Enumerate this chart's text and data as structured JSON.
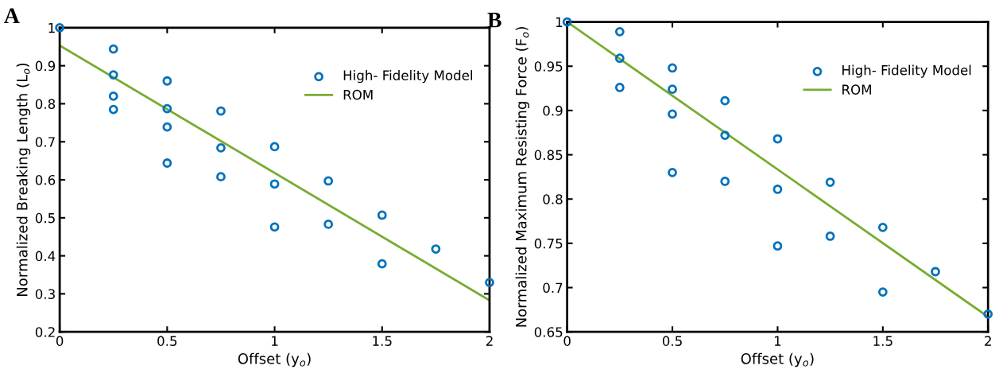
{
  "chart_data": [
    {
      "type": "scatter",
      "title": "A",
      "xlabel": "Offset (y$_{o}$)",
      "ylabel": "Normalized Breaking Length (L$_{o}$)",
      "xlim": [
        0,
        2
      ],
      "ylim": [
        0.2,
        1
      ],
      "xticks": [
        0,
        0.5,
        1,
        1.5,
        2
      ],
      "yticks": [
        0.2,
        0.3,
        0.4,
        0.5,
        0.6,
        0.7,
        0.8,
        0.9,
        1
      ],
      "grid": false,
      "legend": "top right",
      "series": [
        {
          "name": "High- Fidelity Model",
          "marker": "circle",
          "color": "#0072bd",
          "x": [
            0,
            0.25,
            0.25,
            0.25,
            0.25,
            0.5,
            0.5,
            0.5,
            0.5,
            0.75,
            0.75,
            0.75,
            1,
            1,
            1,
            1.25,
            1.25,
            1.5,
            1.5,
            1.75,
            2
          ],
          "values": [
            1.0,
            0.944,
            0.876,
            0.82,
            0.785,
            0.86,
            0.787,
            0.739,
            0.644,
            0.781,
            0.684,
            0.608,
            0.687,
            0.589,
            0.476,
            0.597,
            0.483,
            0.507,
            0.379,
            0.418,
            0.33
          ]
        },
        {
          "name": "ROM",
          "type": "line",
          "color": "#77ac30",
          "line_style": "solid",
          "x": [
            0,
            2
          ],
          "values": [
            0.953,
            0.283
          ]
        }
      ]
    },
    {
      "type": "scatter",
      "title": "B",
      "xlabel": "Offset (y$_{o}$)",
      "ylabel": "Normalized Maximum Resisting Force (F$_{o}$)",
      "xlim": [
        0,
        2
      ],
      "ylim": [
        0.65,
        1
      ],
      "xticks": [
        0,
        0.5,
        1,
        1.5,
        2
      ],
      "yticks": [
        0.65,
        0.7,
        0.75,
        0.8,
        0.85,
        0.9,
        0.95,
        1
      ],
      "grid": false,
      "legend": "top right",
      "series": [
        {
          "name": "High- Fidelity Model",
          "marker": "circle",
          "color": "#0072bd",
          "x": [
            0,
            0.25,
            0.25,
            0.25,
            0.5,
            0.5,
            0.5,
            0.5,
            0.75,
            0.75,
            0.75,
            1,
            1,
            1,
            1.25,
            1.25,
            1.5,
            1.5,
            1.75,
            2
          ],
          "values": [
            1.0,
            0.989,
            0.959,
            0.926,
            0.948,
            0.924,
            0.896,
            0.83,
            0.911,
            0.872,
            0.82,
            0.868,
            0.811,
            0.747,
            0.819,
            0.758,
            0.768,
            0.695,
            0.718,
            0.67
          ]
        },
        {
          "name": "ROM",
          "type": "line",
          "color": "#77ac30",
          "line_style": "solid",
          "x": [
            0,
            2
          ],
          "values": [
            1.0,
            0.667
          ]
        }
      ]
    }
  ]
}
